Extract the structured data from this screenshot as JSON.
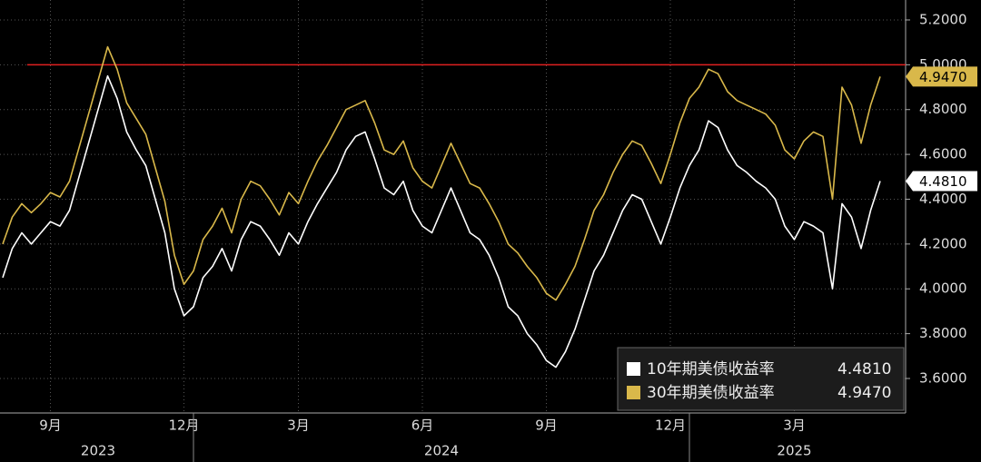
{
  "chart_data": {
    "type": "line",
    "categories": [
      null,
      null,
      null,
      null,
      null,
      "9月",
      null,
      null,
      null,
      null,
      null,
      null,
      null,
      null,
      null,
      null,
      null,
      null,
      null,
      "12月",
      null,
      null,
      null,
      null,
      null,
      null,
      null,
      null,
      null,
      null,
      null,
      "3月",
      null,
      null,
      null,
      null,
      null,
      null,
      null,
      null,
      null,
      null,
      null,
      null,
      "6月",
      null,
      null,
      null,
      null,
      null,
      null,
      null,
      null,
      null,
      null,
      null,
      null,
      "9月",
      null,
      null,
      null,
      null,
      null,
      null,
      null,
      null,
      null,
      null,
      null,
      null,
      "12月",
      null,
      null,
      null,
      null,
      null,
      null,
      null,
      null,
      null,
      null,
      null,
      null,
      "3月",
      null,
      null,
      null,
      null,
      null,
      null,
      null,
      null,
      null
    ],
    "year_categories": [
      null,
      null,
      null,
      null,
      null,
      null,
      null,
      null,
      null,
      null,
      "2023",
      null,
      null,
      null,
      null,
      null,
      null,
      null,
      null,
      null,
      null,
      null,
      null,
      null,
      null,
      null,
      null,
      null,
      null,
      null,
      null,
      null,
      null,
      null,
      null,
      null,
      null,
      null,
      null,
      null,
      null,
      null,
      null,
      null,
      null,
      null,
      "2024",
      null,
      null,
      null,
      null,
      null,
      null,
      null,
      null,
      null,
      null,
      null,
      null,
      null,
      null,
      null,
      null,
      null,
      null,
      null,
      null,
      null,
      null,
      null,
      null,
      null,
      null,
      null,
      null,
      null,
      null,
      null,
      null,
      null,
      null,
      null,
      null,
      "2025",
      null,
      null,
      null,
      null,
      null,
      null,
      null,
      null,
      null
    ],
    "series": [
      {
        "name": "10年期美债收益率",
        "color": "#ffffff",
        "last_label": "4.4810",
        "values": [
          4.05,
          4.18,
          4.25,
          4.2,
          4.25,
          4.3,
          4.28,
          4.35,
          4.5,
          4.65,
          4.8,
          4.95,
          4.85,
          4.7,
          4.62,
          4.55,
          4.4,
          4.25,
          4.0,
          3.88,
          3.92,
          4.05,
          4.1,
          4.18,
          4.08,
          4.22,
          4.3,
          4.28,
          4.22,
          4.15,
          4.25,
          4.2,
          4.3,
          4.38,
          4.45,
          4.52,
          4.62,
          4.68,
          4.7,
          4.58,
          4.45,
          4.42,
          4.48,
          4.35,
          4.28,
          4.25,
          4.35,
          4.45,
          4.35,
          4.25,
          4.22,
          4.15,
          4.05,
          3.92,
          3.88,
          3.8,
          3.75,
          3.68,
          3.65,
          3.72,
          3.82,
          3.95,
          4.08,
          4.15,
          4.25,
          4.35,
          4.42,
          4.4,
          4.3,
          4.2,
          4.32,
          4.45,
          4.55,
          4.62,
          4.75,
          4.72,
          4.62,
          4.55,
          4.52,
          4.48,
          4.45,
          4.4,
          4.28,
          4.22,
          4.3,
          4.28,
          4.25,
          4.0,
          4.38,
          4.32,
          4.18,
          4.35,
          4.481
        ]
      },
      {
        "name": "30年期美债收益率",
        "color": "#d9b84a",
        "last_label": "4.9470",
        "values": [
          4.2,
          4.32,
          4.38,
          4.34,
          4.38,
          4.43,
          4.41,
          4.48,
          4.63,
          4.78,
          4.93,
          5.08,
          4.98,
          4.83,
          4.76,
          4.69,
          4.54,
          4.39,
          4.15,
          4.02,
          4.08,
          4.22,
          4.28,
          4.36,
          4.25,
          4.4,
          4.48,
          4.46,
          4.4,
          4.33,
          4.43,
          4.38,
          4.48,
          4.57,
          4.64,
          4.72,
          4.8,
          4.82,
          4.84,
          4.74,
          4.62,
          4.6,
          4.66,
          4.54,
          4.48,
          4.45,
          4.55,
          4.65,
          4.56,
          4.47,
          4.45,
          4.38,
          4.3,
          4.2,
          4.16,
          4.1,
          4.05,
          3.98,
          3.95,
          4.02,
          4.1,
          4.22,
          4.35,
          4.42,
          4.52,
          4.6,
          4.66,
          4.64,
          4.56,
          4.47,
          4.6,
          4.74,
          4.85,
          4.9,
          4.98,
          4.96,
          4.88,
          4.84,
          4.82,
          4.8,
          4.78,
          4.73,
          4.62,
          4.58,
          4.66,
          4.7,
          4.68,
          4.4,
          4.9,
          4.82,
          4.65,
          4.82,
          4.947
        ]
      }
    ],
    "reference_line": 5.0,
    "ylim": [
      3.446,
      5.289
    ],
    "yticks": [
      {
        "value": 3.6,
        "label": "3.6000"
      },
      {
        "value": 3.8,
        "label": "3.8000"
      },
      {
        "value": 4.0,
        "label": "4.0000"
      },
      {
        "value": 4.2,
        "label": "4.2000"
      },
      {
        "value": 4.4,
        "label": "4.4000"
      },
      {
        "value": 4.6,
        "label": "4.6000"
      },
      {
        "value": 4.8,
        "label": "4.8000"
      },
      {
        "value": 5.0,
        "label": "5.0000"
      },
      {
        "value": 5.2,
        "label": "5.2000"
      }
    ],
    "grid": true
  }
}
